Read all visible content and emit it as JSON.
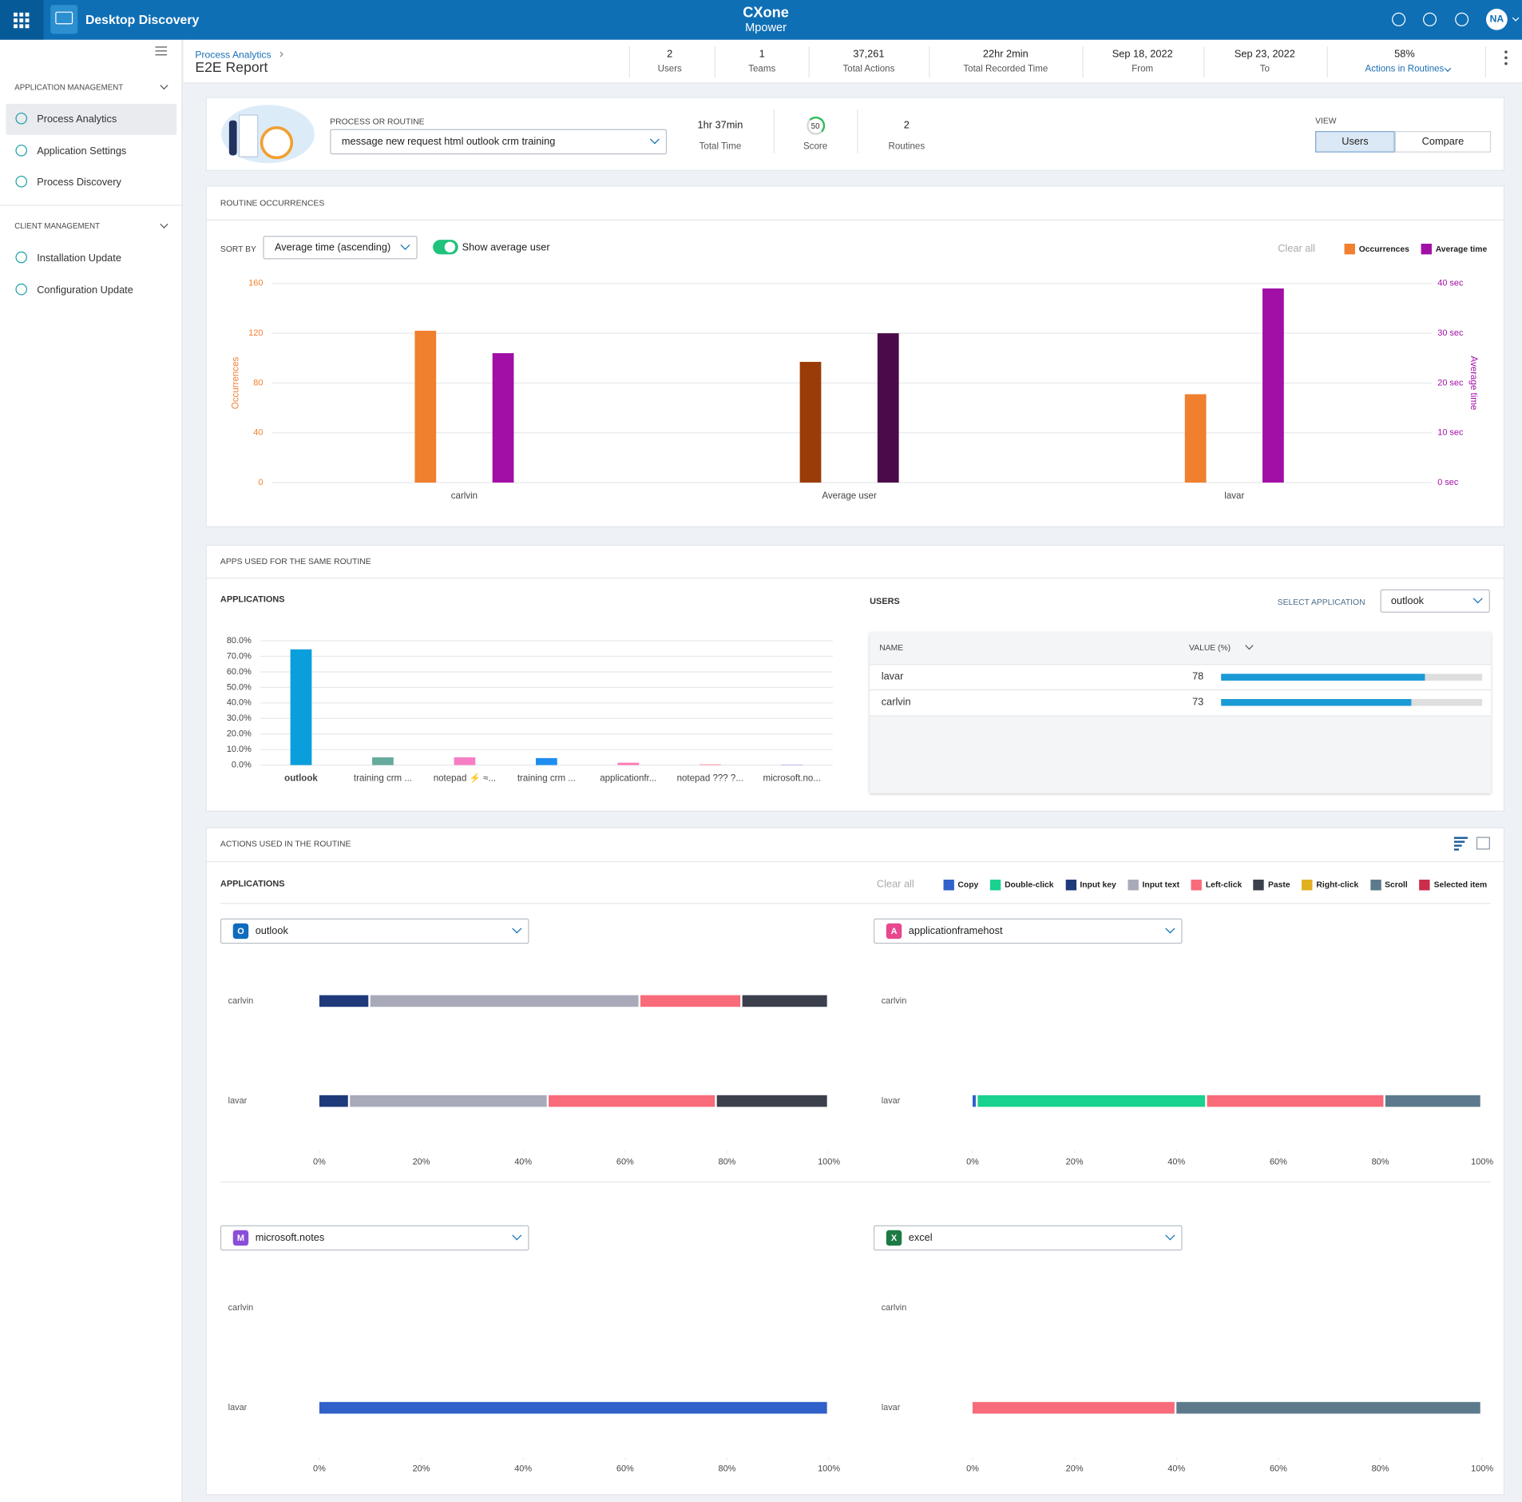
{
  "header": {
    "app_title": "Desktop Discovery",
    "brand_top": "CXone",
    "brand_bottom": "Mpower",
    "user_initials": "NA"
  },
  "sidebar": {
    "sections": [
      {
        "title": "APPLICATION MANAGEMENT",
        "items": [
          "Process Analytics",
          "Application Settings",
          "Process Discovery"
        ],
        "active": 0
      },
      {
        "title": "CLIENT MANAGEMENT",
        "items": [
          "Installation Update",
          "Configuration Update"
        ]
      }
    ]
  },
  "breadcrumb": {
    "parent": "Process Analytics",
    "title": "E2E Report"
  },
  "stats": [
    {
      "value": "2",
      "label": "Users"
    },
    {
      "value": "1",
      "label": "Teams"
    },
    {
      "value": "37,261",
      "label": "Total Actions"
    },
    {
      "value": "22hr 2min",
      "label": "Total Recorded Time"
    },
    {
      "value": "Sep 18, 2022",
      "label": "From"
    },
    {
      "value": "Sep 23, 2022",
      "label": "To"
    },
    {
      "value": "58%",
      "label": "Actions in Routines"
    }
  ],
  "process": {
    "field_label": "PROCESS OR ROUTINE",
    "selected": "message new request html outlook crm training",
    "metrics": [
      {
        "value": "1hr 37min",
        "label": "Total Time"
      },
      {
        "value": "50",
        "label": "Score"
      },
      {
        "value": "2",
        "label": "Routines"
      }
    ],
    "view_label": "VIEW",
    "view_options": [
      "Users",
      "Compare"
    ],
    "view_selected": 0
  },
  "occurrences": {
    "title": "ROUTINE OCCURRENCES",
    "sort_label": "SORT BY",
    "sort_value": "Average time (ascending)",
    "toggle_label": "Show average user",
    "clear_label": "Clear all",
    "chart_data": {
      "type": "bar",
      "categories": [
        "carlvin",
        "Average user",
        "lavar"
      ],
      "series": [
        {
          "name": "Occurrences",
          "color": "#f07f2e",
          "colors": [
            "#f07f2e",
            "#9a3c08",
            "#f07f2e"
          ],
          "values": [
            122,
            97,
            71
          ]
        },
        {
          "name": "Average time",
          "color": "#a10fa6",
          "colors": [
            "#a10fa6",
            "#4b0a4a",
            "#a10fa6"
          ],
          "axis": "y2",
          "values": [
            26,
            30,
            39
          ]
        }
      ],
      "ylim": [
        0,
        160
      ],
      "yticks": [
        0,
        40,
        80,
        120,
        160
      ],
      "y2lim": [
        0,
        40
      ],
      "y2ticks": [
        {
          "value": 0,
          "label": "0 sec"
        },
        {
          "value": 10,
          "label": "10 sec"
        },
        {
          "value": 20,
          "label": "20 sec"
        },
        {
          "value": 30,
          "label": "30 sec"
        },
        {
          "value": 40,
          "label": "40 sec"
        }
      ],
      "ylabel": "Occurrences",
      "y2label": "Average time",
      "grid": true
    }
  },
  "apps": {
    "title": "APPS USED FOR THE SAME ROUTINE",
    "chart_title": "APPLICATIONS",
    "chart_data": {
      "type": "bar",
      "categories": [
        "outlook",
        "training crm ...",
        "notepad ⚡ ≈...",
        "training crm ...",
        "applicationfr...",
        "notepad ??? ?...",
        "microsoft.no..."
      ],
      "values": [
        74.5,
        5,
        5,
        4.5,
        1.5,
        0.5,
        0.3
      ],
      "colors": [
        "#0a9edc",
        "#66ab9c",
        "#f57ec4",
        "#1e8df0",
        "#ff7bb4",
        "#ff8fa3",
        "#a593ff"
      ],
      "ylim": [
        0,
        80
      ],
      "yticks": [
        {
          "value": 0,
          "label": "0.0%"
        },
        {
          "value": 10,
          "label": "10.0%"
        },
        {
          "value": 20,
          "label": "20.0%"
        },
        {
          "value": 30,
          "label": "30.0%"
        },
        {
          "value": 40,
          "label": "40.0%"
        },
        {
          "value": 50,
          "label": "50.0%"
        },
        {
          "value": 60,
          "label": "60.0%"
        },
        {
          "value": 70,
          "label": "70.0%"
        },
        {
          "value": 80,
          "label": "80.0%"
        }
      ],
      "grid": true
    },
    "users_title": "USERS",
    "select_label": "SELECT APPLICATION",
    "select_value": "outlook",
    "table": {
      "columns": [
        "NAME",
        "VALUE (%)"
      ],
      "rows": [
        [
          "lavar",
          78
        ],
        [
          "carlvin",
          73
        ]
      ],
      "xlim": [
        0,
        100
      ],
      "bar_color": "#1a9ad6"
    }
  },
  "actions": {
    "title": "ACTIONS USED IN THE ROUTINE",
    "apps_label": "APPLICATIONS",
    "clear_label": "Clear all",
    "legend": [
      {
        "name": "Copy",
        "color": "#3060c9"
      },
      {
        "name": "Double-click",
        "color": "#1ad18f"
      },
      {
        "name": "Input key",
        "color": "#1f3a7a"
      },
      {
        "name": "Input text",
        "color": "#a9aab9"
      },
      {
        "name": "Left-click",
        "color": "#f86b7a"
      },
      {
        "name": "Paste",
        "color": "#3c3f4c"
      },
      {
        "name": "Right-click",
        "color": "#e0b020"
      },
      {
        "name": "Scroll",
        "color": "#5d7a8c"
      },
      {
        "name": "Selected item",
        "color": "#cc2d4a"
      }
    ],
    "panels": [
      {
        "app": "outlook",
        "icon": "O",
        "icon_color": "#0f6cbd",
        "chart_data": {
          "type": "stacked-bar",
          "categories": [
            "carlvin",
            "lavar"
          ],
          "series": [
            {
              "name": "Input key",
              "values": [
                10,
                6
              ]
            },
            {
              "name": "Input text",
              "values": [
                53,
                39
              ]
            },
            {
              "name": "Left-click",
              "values": [
                20,
                33
              ]
            },
            {
              "name": "Paste",
              "values": [
                17,
                22
              ]
            }
          ],
          "xlim": [
            0,
            100
          ],
          "xticks": [
            {
              "value": 0,
              "label": "0%"
            },
            {
              "value": 20,
              "label": "20%"
            },
            {
              "value": 40,
              "label": "40%"
            },
            {
              "value": 60,
              "label": "60%"
            },
            {
              "value": 80,
              "label": "80%"
            },
            {
              "value": 100,
              "label": "100%"
            }
          ]
        }
      },
      {
        "app": "applicationframehost",
        "icon": "A",
        "icon_color": "#e8478f",
        "chart_data": {
          "type": "stacked-bar",
          "categories": [
            "carlvin",
            "lavar"
          ],
          "series": [
            {
              "name": "Copy",
              "values": [
                null,
                1
              ]
            },
            {
              "name": "Double-click",
              "values": [
                null,
                45
              ]
            },
            {
              "name": "Left-click",
              "values": [
                null,
                35
              ]
            },
            {
              "name": "Scroll",
              "values": [
                null,
                19
              ]
            }
          ],
          "xlim": [
            0,
            100
          ],
          "xticks": [
            {
              "value": 0,
              "label": "0%"
            },
            {
              "value": 20,
              "label": "20%"
            },
            {
              "value": 40,
              "label": "40%"
            },
            {
              "value": 60,
              "label": "60%"
            },
            {
              "value": 80,
              "label": "80%"
            },
            {
              "value": 100,
              "label": "100%"
            }
          ]
        }
      },
      {
        "app": "microsoft.notes",
        "icon": "M",
        "icon_color": "#8a4fd8",
        "chart_data": {
          "type": "stacked-bar",
          "categories": [
            "carlvin",
            "lavar"
          ],
          "series": [
            {
              "name": "Copy",
              "values": [
                null,
                100
              ]
            }
          ],
          "xlim": [
            0,
            100
          ],
          "xticks": [
            {
              "value": 0,
              "label": "0%"
            },
            {
              "value": 20,
              "label": "20%"
            },
            {
              "value": 40,
              "label": "40%"
            },
            {
              "value": 60,
              "label": "60%"
            },
            {
              "value": 80,
              "label": "80%"
            },
            {
              "value": 100,
              "label": "100%"
            }
          ]
        }
      },
      {
        "app": "excel",
        "icon": "X",
        "icon_color": "#1d7a45",
        "chart_data": {
          "type": "stacked-bar",
          "categories": [
            "carlvin",
            "lavar"
          ],
          "series": [
            {
              "name": "Left-click",
              "values": [
                null,
                40
              ]
            },
            {
              "name": "Scroll",
              "values": [
                null,
                60
              ]
            }
          ],
          "xlim": [
            0,
            100
          ],
          "xticks": [
            {
              "value": 0,
              "label": "0%"
            },
            {
              "value": 20,
              "label": "20%"
            },
            {
              "value": 40,
              "label": "40%"
            },
            {
              "value": 60,
              "label": "60%"
            },
            {
              "value": 80,
              "label": "80%"
            },
            {
              "value": 100,
              "label": "100%"
            }
          ]
        }
      }
    ]
  }
}
